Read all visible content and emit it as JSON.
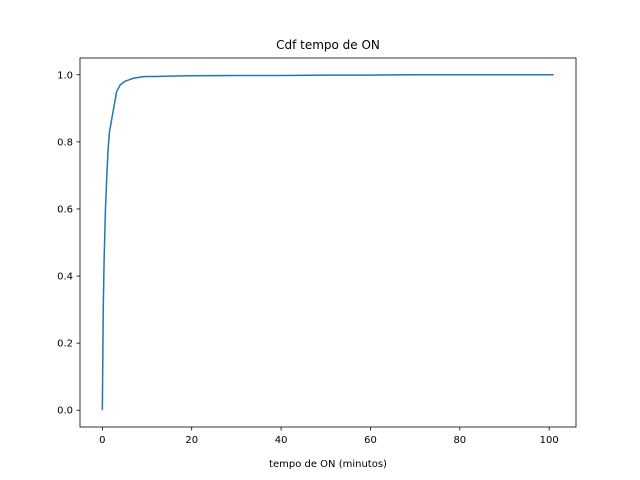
{
  "chart_data": {
    "type": "line",
    "title": "Cdf tempo de ON",
    "xlabel": "tempo de ON (minutos)",
    "ylabel": "",
    "xlim": [
      -5,
      106
    ],
    "ylim": [
      -0.05,
      1.05
    ],
    "xticks": [
      0,
      20,
      40,
      60,
      80,
      100
    ],
    "yticks": [
      0.0,
      0.2,
      0.4,
      0.6,
      0.8,
      1.0
    ],
    "xtick_labels": [
      "0",
      "20",
      "40",
      "60",
      "80",
      "100"
    ],
    "ytick_labels": [
      "0.0",
      "0.2",
      "0.4",
      "0.6",
      "0.8",
      "1.0"
    ],
    "grid": false,
    "series": [
      {
        "color": "#1f77b4",
        "x": [
          0,
          0.2,
          0.4,
          0.7,
          1.0,
          1.3,
          1.6,
          2.0,
          2.4,
          2.8,
          3.2,
          3.6,
          4.0,
          4.5,
          5.0,
          6.0,
          7.0,
          8.0,
          9.0,
          10.0,
          12.0,
          15.0,
          20.0,
          30.0,
          40.0,
          50.0,
          60.0,
          70.0,
          80.0,
          90.0,
          101.0
        ],
        "y": [
          0.0,
          0.3,
          0.45,
          0.6,
          0.7,
          0.78,
          0.83,
          0.86,
          0.89,
          0.92,
          0.95,
          0.96,
          0.97,
          0.975,
          0.98,
          0.985,
          0.99,
          0.992,
          0.994,
          0.995,
          0.995,
          0.996,
          0.997,
          0.998,
          0.998,
          0.999,
          0.999,
          1.0,
          1.0,
          1.0,
          1.0
        ]
      }
    ]
  }
}
